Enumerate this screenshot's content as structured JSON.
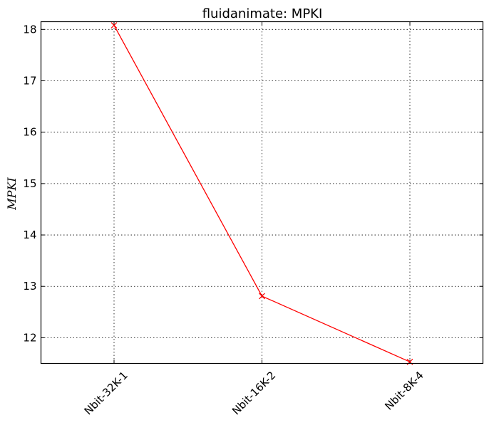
{
  "chart_data": {
    "type": "line",
    "title": "fluidanimate: MPKI",
    "xlabel": "",
    "ylabel": "MPKI",
    "categories": [
      "Nbit-32K-1",
      "Nbit-16K-2",
      "Nbit-8K-4"
    ],
    "series": [
      {
        "values": [
          18.08,
          12.81,
          11.53
        ],
        "color": "#ff0000",
        "marker": "x"
      }
    ],
    "ylim": [
      11.5,
      18.15
    ],
    "yticks": [
      12,
      13,
      14,
      15,
      16,
      17,
      18
    ],
    "grid": true,
    "legend": "none"
  }
}
